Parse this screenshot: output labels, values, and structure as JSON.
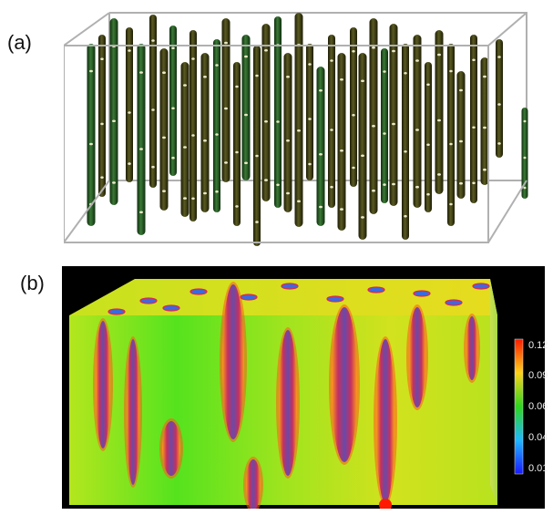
{
  "panels": [
    {
      "label": "(a)"
    },
    {
      "label": "(b)"
    }
  ],
  "colorbar": {
    "ticks": [
      "0.12",
      "0.09",
      "0.06",
      "0.04",
      "0.01"
    ],
    "colors": [
      "#ff1a00",
      "#ffd21a",
      "#2fd61e",
      "#20b8ff",
      "#1a1aff"
    ]
  },
  "colors": {
    "cylinder_dark": "#3a3a10",
    "cylinder_green": "#1f5a1f",
    "box_edge": "#aaaaaa",
    "field_background": "#7ce41e",
    "panel_b_background": "#000000"
  }
}
